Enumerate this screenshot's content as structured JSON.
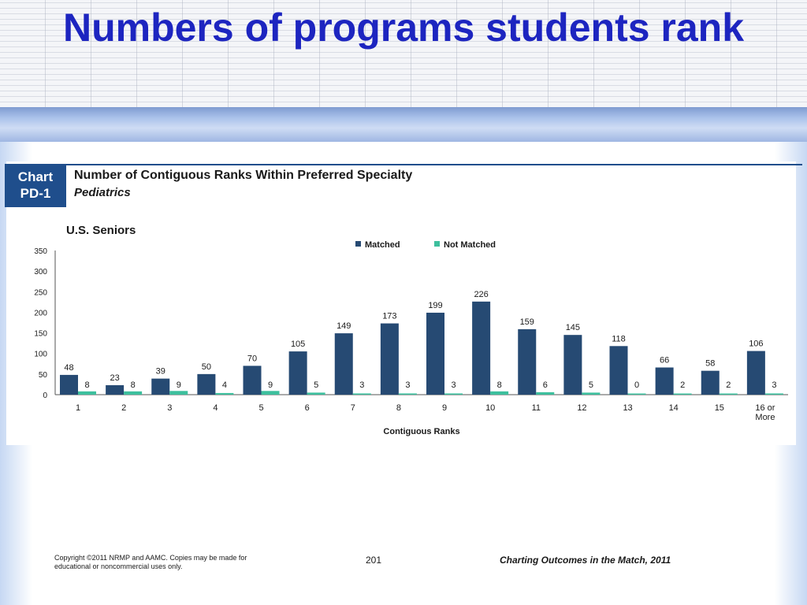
{
  "slide": {
    "title": "Numbers of programs students rank",
    "badge": "Chart PD-1",
    "chart_title": "Number of Contiguous Ranks Within Preferred Specialty",
    "chart_subtitle": "Pediatrics",
    "group_label": "U.S. Seniors"
  },
  "footer": {
    "copyright": "Copyright ©2011 NRMP and AAMC. Copies may be made for educational or noncommercial uses only.",
    "page_number": "201",
    "title": "Charting Outcomes in the Match, 2011"
  },
  "chart_data": {
    "type": "bar",
    "title": "Number of Contiguous Ranks Within Preferred Specialty",
    "subtitle": "Pediatrics",
    "xlabel": "Contiguous Ranks",
    "ylabel": "",
    "ylim": [
      0,
      350
    ],
    "yticks": [
      0,
      50,
      100,
      150,
      200,
      250,
      300,
      350
    ],
    "grid": false,
    "legend_position": "top-center",
    "categories": [
      "1",
      "2",
      "3",
      "4",
      "5",
      "6",
      "7",
      "8",
      "9",
      "10",
      "11",
      "12",
      "13",
      "14",
      "15",
      "16 or More"
    ],
    "series": [
      {
        "name": "Matched",
        "color": "#264a73",
        "values": [
          48,
          23,
          39,
          50,
          70,
          105,
          149,
          173,
          199,
          226,
          159,
          145,
          118,
          66,
          58,
          106
        ]
      },
      {
        "name": "Not Matched",
        "color": "#3dbf9d",
        "values": [
          8,
          8,
          9,
          4,
          9,
          5,
          3,
          3,
          3,
          8,
          6,
          5,
          0,
          2,
          2,
          3
        ]
      }
    ]
  }
}
